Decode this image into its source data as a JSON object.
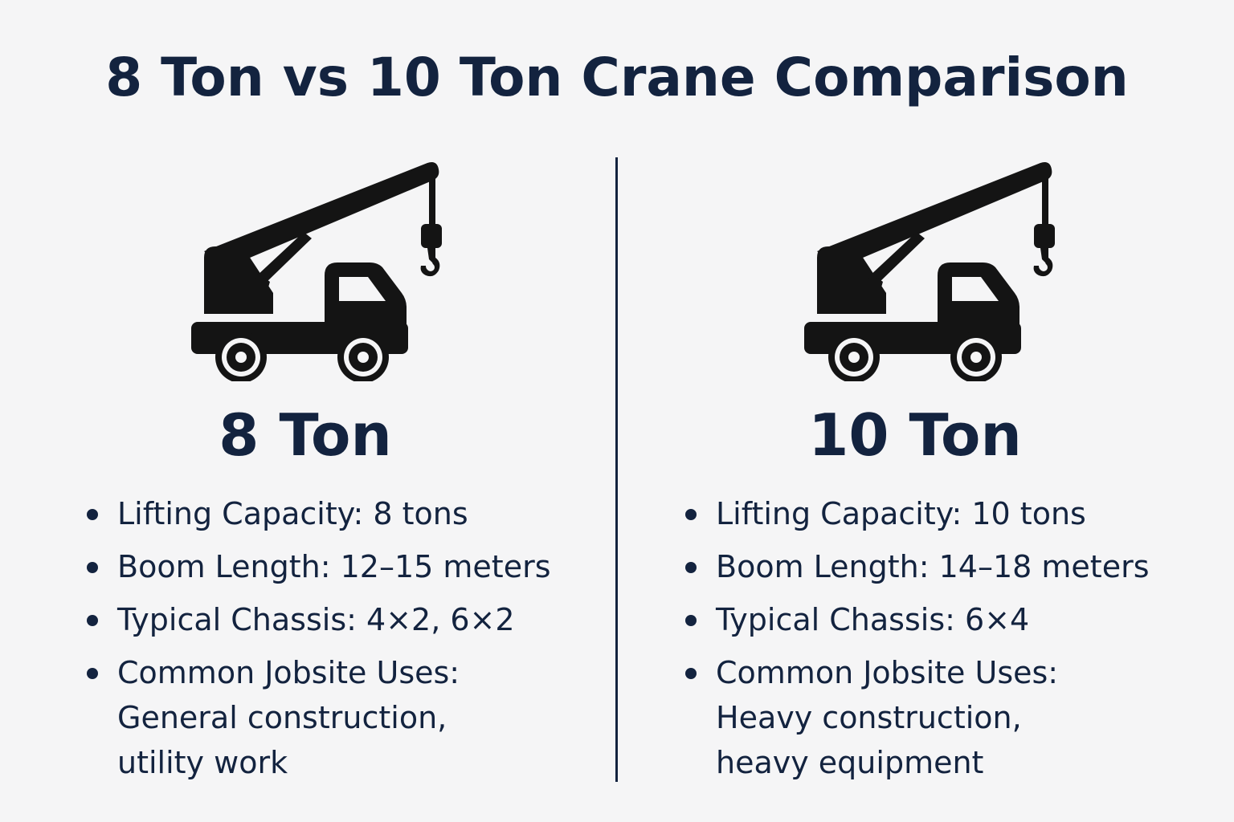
{
  "title": "8 Ton vs 10 Ton Crane Comparison",
  "columns": [
    {
      "icon": "crane-truck-icon",
      "heading": "8 Ton",
      "specs": [
        {
          "label": "Lifting Capacity: 8 tons"
        },
        {
          "label": "Boom Length: 12–15 meters"
        },
        {
          "label": "Typical Chassis: 4×2, 6×2"
        },
        {
          "label": "Common Jobsite Uses:",
          "line2": "General construction,",
          "line3": "utility work"
        }
      ]
    },
    {
      "icon": "crane-truck-icon",
      "heading": "10 Ton",
      "specs": [
        {
          "label": "Lifting Capacity: 10 tons"
        },
        {
          "label": "Boom Length: 14–18 meters"
        },
        {
          "label": "Typical Chassis: 6×4"
        },
        {
          "label": "Common Jobsite Uses:",
          "line2": "Heavy construction,",
          "line3": "heavy equipment"
        }
      ]
    }
  ],
  "colors": {
    "text": "#13233f",
    "background": "#f5f5f6",
    "icon": "#141414"
  }
}
